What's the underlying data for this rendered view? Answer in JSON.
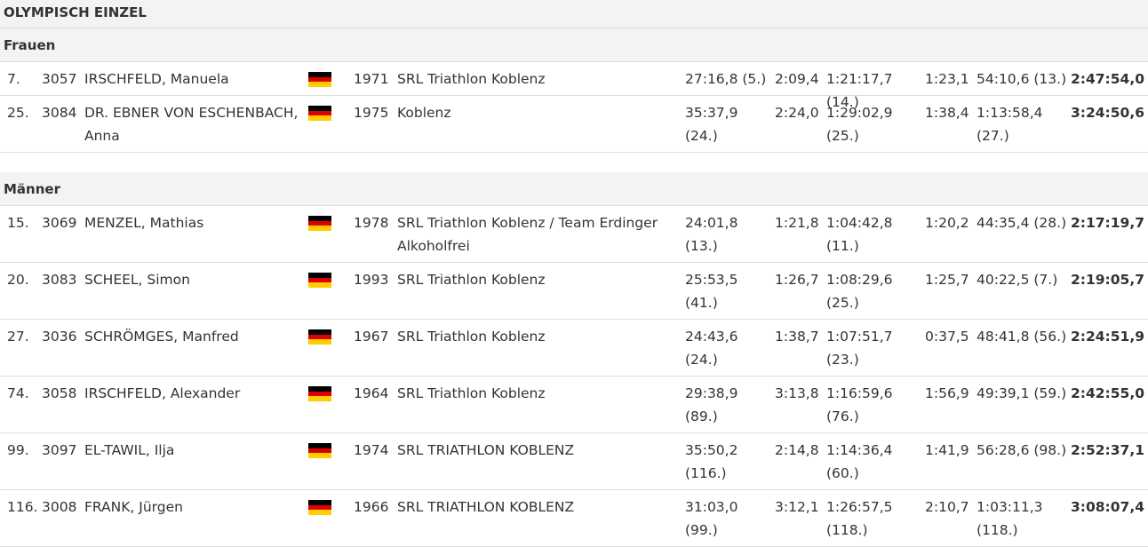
{
  "title": "OLYMPISCH EINZEL",
  "sections": [
    {
      "name": "Frauen",
      "rows": [
        {
          "rank": "7.",
          "bib": "3057",
          "name": "IRSCHFELD, Manuela",
          "year": "1971",
          "club": "SRL Triathlon Koblenz",
          "swim": "27:16,8 (5.)",
          "t1": "2:09,4",
          "bike": "1:21:17,7 (14.)",
          "t2": "1:23,1",
          "run": "54:10,6 (13.)",
          "total": "2:47:54,0"
        },
        {
          "rank": "25.",
          "bib": "3084",
          "name": "DR. EBNER VON ESCHENBACH, Anna",
          "year": "1975",
          "club": "Koblenz",
          "swim": "35:37,9 (24.)",
          "t1": "2:24,0",
          "bike": "1:29:02,9 (25.)",
          "t2": "1:38,4",
          "run": "1:13:58,4 (27.)",
          "total": "3:24:50,6"
        }
      ]
    },
    {
      "name": "Männer",
      "rows": [
        {
          "rank": "15.",
          "bib": "3069",
          "name": "MENZEL, Mathias",
          "year": "1978",
          "club": "SRL Triathlon Koblenz / Team Erdinger Alkoholfrei",
          "swim": "24:01,8 (13.)",
          "t1": "1:21,8",
          "bike": "1:04:42,8 (11.)",
          "t2": "1:20,2",
          "run": "44:35,4 (28.)",
          "total": "2:17:19,7"
        },
        {
          "rank": "20.",
          "bib": "3083",
          "name": "SCHEEL, Simon",
          "year": "1993",
          "club": "SRL Triathlon Koblenz",
          "swim": "25:53,5 (41.)",
          "t1": "1:26,7",
          "bike": "1:08:29,6 (25.)",
          "t2": "1:25,7",
          "run": "40:22,5 (7.)",
          "total": "2:19:05,7"
        },
        {
          "rank": "27.",
          "bib": "3036",
          "name": "SCHRÖMGES, Manfred",
          "year": "1967",
          "club": "SRL Triathlon Koblenz",
          "swim": "24:43,6 (24.)",
          "t1": "1:38,7",
          "bike": "1:07:51,7 (23.)",
          "t2": "0:37,5",
          "run": "48:41,8 (56.)",
          "total": "2:24:51,9"
        },
        {
          "rank": "74.",
          "bib": "3058",
          "name": "IRSCHFELD, Alexander",
          "year": "1964",
          "club": "SRL Triathlon Koblenz",
          "swim": "29:38,9 (89.)",
          "t1": "3:13,8",
          "bike": "1:16:59,6 (76.)",
          "t2": "1:56,9",
          "run": "49:39,1 (59.)",
          "total": "2:42:55,0"
        },
        {
          "rank": "99.",
          "bib": "3097",
          "name": "EL-TAWIL, Ilja",
          "year": "1974",
          "club": "SRL TRIATHLON KOBLENZ",
          "swim": "35:50,2 (116.)",
          "t1": "2:14,8",
          "bike": "1:14:36,4 (60.)",
          "t2": "1:41,9",
          "run": "56:28,6 (98.)",
          "total": "2:52:37,1"
        },
        {
          "rank": "116.",
          "bib": "3008",
          "name": "FRANK, Jürgen",
          "year": "1966",
          "club": "SRL TRIATHLON KOBLENZ",
          "swim": "31:03,0 (99.)",
          "t1": "3:12,1",
          "bike": "1:26:57,5 (118.)",
          "t2": "2:10,7",
          "run": "1:03:11,3 (118.)",
          "total": "3:08:07,4"
        }
      ]
    }
  ]
}
